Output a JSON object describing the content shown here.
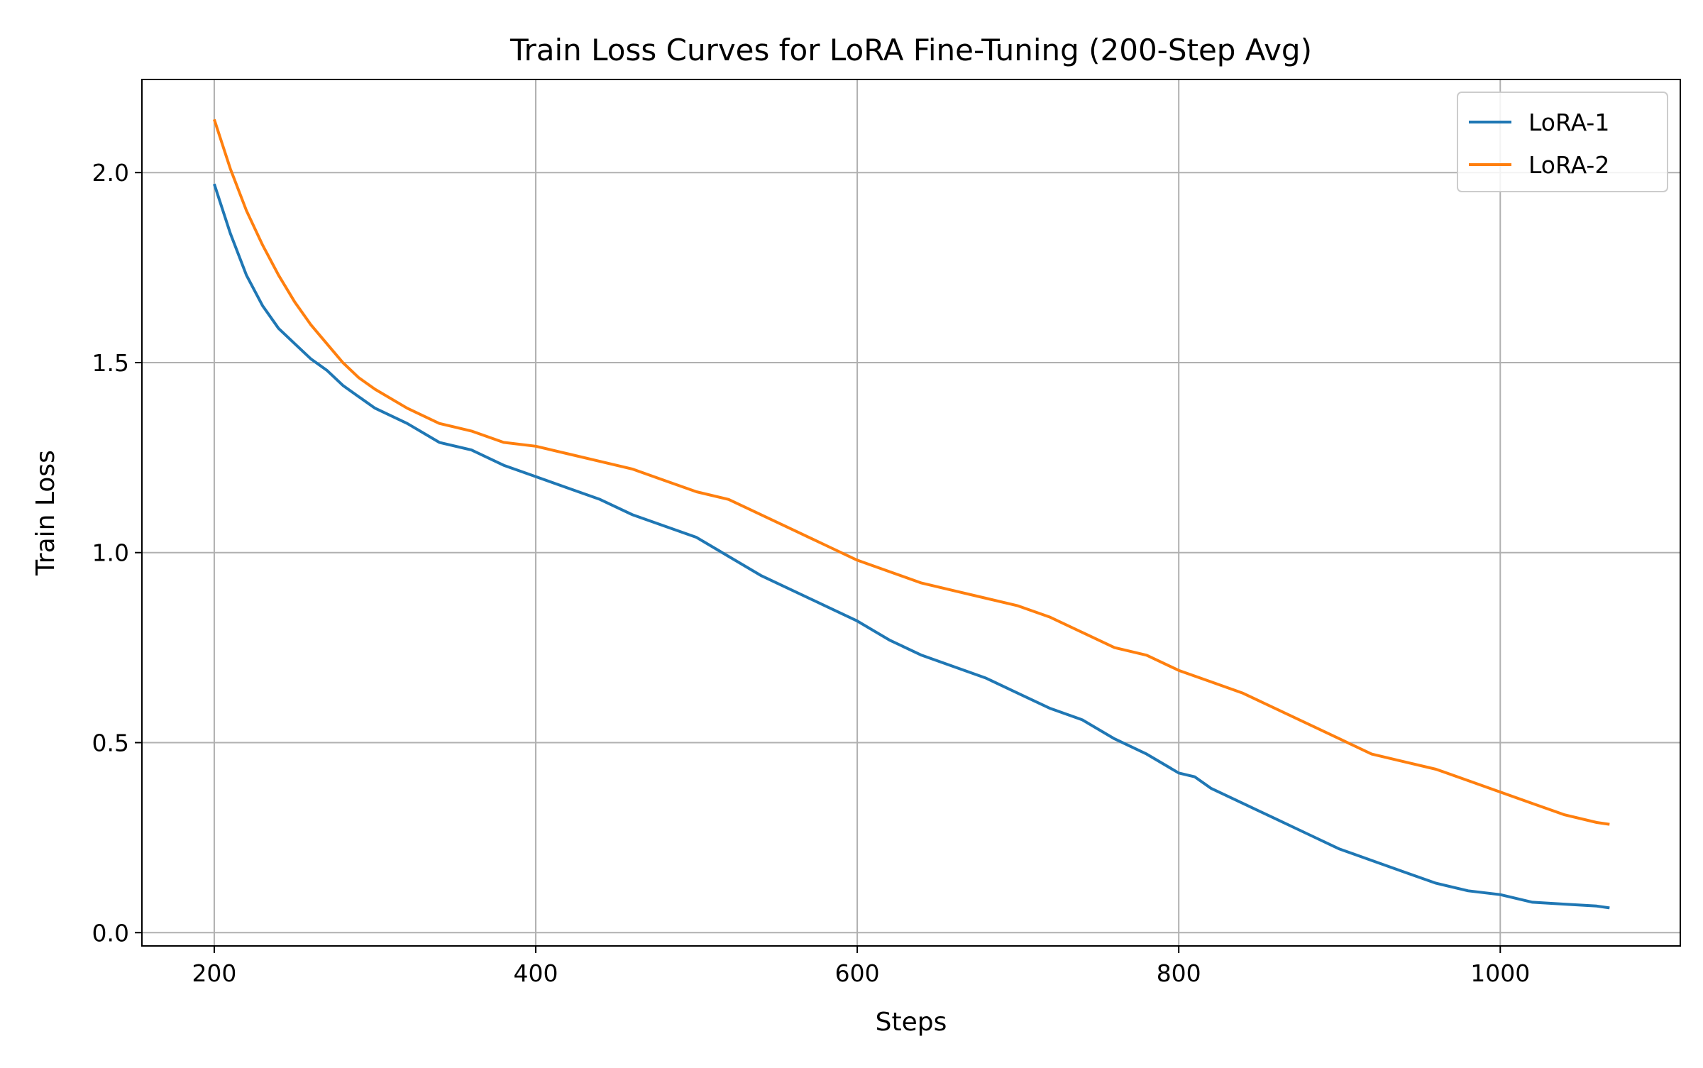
{
  "chart_data": {
    "type": "line",
    "title": "Train Loss Curves for LoRA Fine-Tuning (200-Step Avg)",
    "xlabel": "Steps",
    "ylabel": "Train Loss",
    "xlim": [
      155,
      1112
    ],
    "ylim": [
      -0.035,
      2.245
    ],
    "xticks": [
      200,
      400,
      600,
      800,
      1000
    ],
    "xtick_labels": [
      "200",
      "400",
      "600",
      "800",
      "1000"
    ],
    "yticks": [
      0.0,
      0.5,
      1.0,
      1.5,
      2.0
    ],
    "ytick_labels": [
      "0.0",
      "0.5",
      "1.0",
      "1.5",
      "2.0"
    ],
    "grid": true,
    "legend_position": "top-right",
    "series": [
      {
        "name": "LoRA-1",
        "color": "#1f77b4",
        "points": [
          [
            200,
            1.97
          ],
          [
            210,
            1.84
          ],
          [
            220,
            1.73
          ],
          [
            230,
            1.65
          ],
          [
            240,
            1.59
          ],
          [
            250,
            1.55
          ],
          [
            260,
            1.51
          ],
          [
            270,
            1.48
          ],
          [
            280,
            1.44
          ],
          [
            290,
            1.41
          ],
          [
            300,
            1.38
          ],
          [
            320,
            1.34
          ],
          [
            340,
            1.29
          ],
          [
            360,
            1.27
          ],
          [
            380,
            1.23
          ],
          [
            400,
            1.2
          ],
          [
            420,
            1.17
          ],
          [
            440,
            1.14
          ],
          [
            460,
            1.1
          ],
          [
            480,
            1.07
          ],
          [
            500,
            1.04
          ],
          [
            520,
            0.99
          ],
          [
            540,
            0.94
          ],
          [
            560,
            0.9
          ],
          [
            580,
            0.86
          ],
          [
            600,
            0.82
          ],
          [
            620,
            0.77
          ],
          [
            640,
            0.73
          ],
          [
            660,
            0.7
          ],
          [
            680,
            0.67
          ],
          [
            700,
            0.63
          ],
          [
            720,
            0.59
          ],
          [
            740,
            0.56
          ],
          [
            760,
            0.51
          ],
          [
            780,
            0.47
          ],
          [
            800,
            0.42
          ],
          [
            810,
            0.41
          ],
          [
            820,
            0.38
          ],
          [
            840,
            0.34
          ],
          [
            860,
            0.3
          ],
          [
            880,
            0.26
          ],
          [
            900,
            0.22
          ],
          [
            920,
            0.19
          ],
          [
            940,
            0.16
          ],
          [
            960,
            0.13
          ],
          [
            980,
            0.11
          ],
          [
            1000,
            0.1
          ],
          [
            1020,
            0.08
          ],
          [
            1040,
            0.075
          ],
          [
            1060,
            0.07
          ],
          [
            1068,
            0.065
          ]
        ]
      },
      {
        "name": "LoRA-2",
        "color": "#ff7f0e",
        "points": [
          [
            200,
            2.14
          ],
          [
            210,
            2.01
          ],
          [
            220,
            1.9
          ],
          [
            230,
            1.81
          ],
          [
            240,
            1.73
          ],
          [
            250,
            1.66
          ],
          [
            260,
            1.6
          ],
          [
            270,
            1.55
          ],
          [
            280,
            1.5
          ],
          [
            290,
            1.46
          ],
          [
            300,
            1.43
          ],
          [
            320,
            1.38
          ],
          [
            340,
            1.34
          ],
          [
            360,
            1.32
          ],
          [
            380,
            1.29
          ],
          [
            400,
            1.28
          ],
          [
            420,
            1.26
          ],
          [
            440,
            1.24
          ],
          [
            460,
            1.22
          ],
          [
            480,
            1.19
          ],
          [
            500,
            1.16
          ],
          [
            520,
            1.14
          ],
          [
            540,
            1.1
          ],
          [
            560,
            1.06
          ],
          [
            580,
            1.02
          ],
          [
            600,
            0.98
          ],
          [
            620,
            0.95
          ],
          [
            640,
            0.92
          ],
          [
            660,
            0.9
          ],
          [
            680,
            0.88
          ],
          [
            700,
            0.86
          ],
          [
            720,
            0.83
          ],
          [
            740,
            0.79
          ],
          [
            760,
            0.75
          ],
          [
            780,
            0.73
          ],
          [
            800,
            0.69
          ],
          [
            820,
            0.66
          ],
          [
            840,
            0.63
          ],
          [
            860,
            0.59
          ],
          [
            880,
            0.55
          ],
          [
            900,
            0.51
          ],
          [
            920,
            0.47
          ],
          [
            940,
            0.45
          ],
          [
            960,
            0.43
          ],
          [
            980,
            0.4
          ],
          [
            1000,
            0.37
          ],
          [
            1020,
            0.34
          ],
          [
            1040,
            0.31
          ],
          [
            1060,
            0.29
          ],
          [
            1068,
            0.285
          ]
        ]
      }
    ]
  }
}
